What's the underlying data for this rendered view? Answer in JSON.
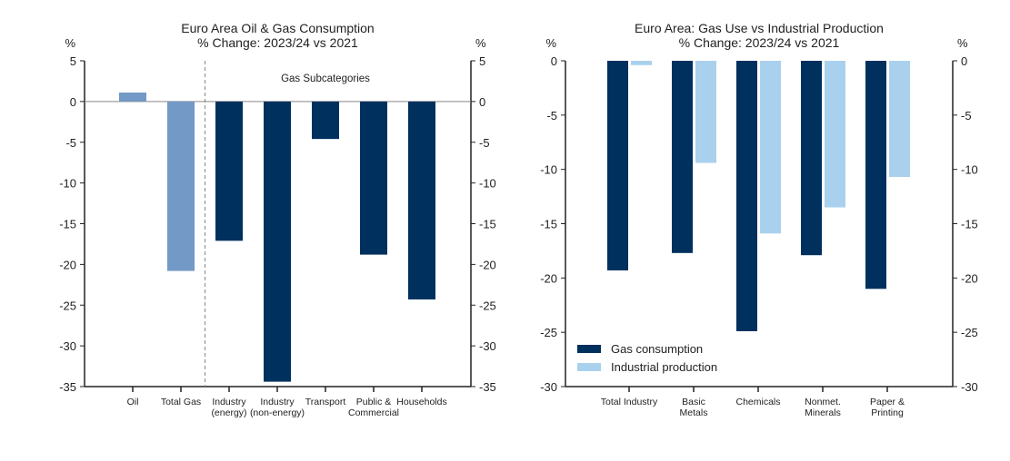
{
  "chart_data": [
    {
      "type": "bar",
      "title": "Euro Area Oil & Gas Consumption",
      "subtitle": "% Change: 2023/24 vs 2021",
      "ylabel_left": "%",
      "ylabel_right": "%",
      "ylim": [
        -35,
        5
      ],
      "yticks": [
        5,
        0,
        -5,
        -10,
        -15,
        -20,
        -25,
        -30,
        -35
      ],
      "annotation": "Gas Subcategories",
      "categories": [
        [
          "Oil"
        ],
        [
          "Total Gas"
        ],
        [
          "Industry",
          "(energy)"
        ],
        [
          "Industry",
          "(non-energy)"
        ],
        [
          "Transport"
        ],
        [
          "Public &",
          "Commercial"
        ],
        [
          "Households"
        ]
      ],
      "values": [
        1.1,
        -20.8,
        -17.1,
        -34.4,
        -4.6,
        -18.8,
        -24.3
      ],
      "bar_colors": [
        "#7399c6",
        "#7399c6",
        "#00305e",
        "#00305e",
        "#00305e",
        "#00305e",
        "#00305e"
      ],
      "separator_after_category": 1,
      "grid": false
    },
    {
      "type": "bar",
      "title": "Euro Area: Gas Use vs Industrial Production",
      "subtitle": "% Change: 2023/24 vs 2021",
      "ylabel_left": "%",
      "ylabel_right": "%",
      "ylim": [
        -30,
        0
      ],
      "yticks": [
        0,
        -5,
        -10,
        -15,
        -20,
        -25,
        -30
      ],
      "categories": [
        [
          "Total Industry"
        ],
        [
          "Basic",
          "Metals"
        ],
        [
          "Chemicals"
        ],
        [
          "Nonmet.",
          "Minerals"
        ],
        [
          "Paper &",
          "Printing"
        ]
      ],
      "series": [
        {
          "name": "Gas consumption",
          "color": "#00305e",
          "values": [
            -19.3,
            -17.7,
            -24.9,
            -17.9,
            -21.0
          ]
        },
        {
          "name": "Industrial production",
          "color": "#a9d1ee",
          "values": [
            -0.4,
            -9.4,
            -15.9,
            -13.5,
            -10.7
          ]
        }
      ],
      "legend": "bottom-left",
      "grid": false
    }
  ]
}
